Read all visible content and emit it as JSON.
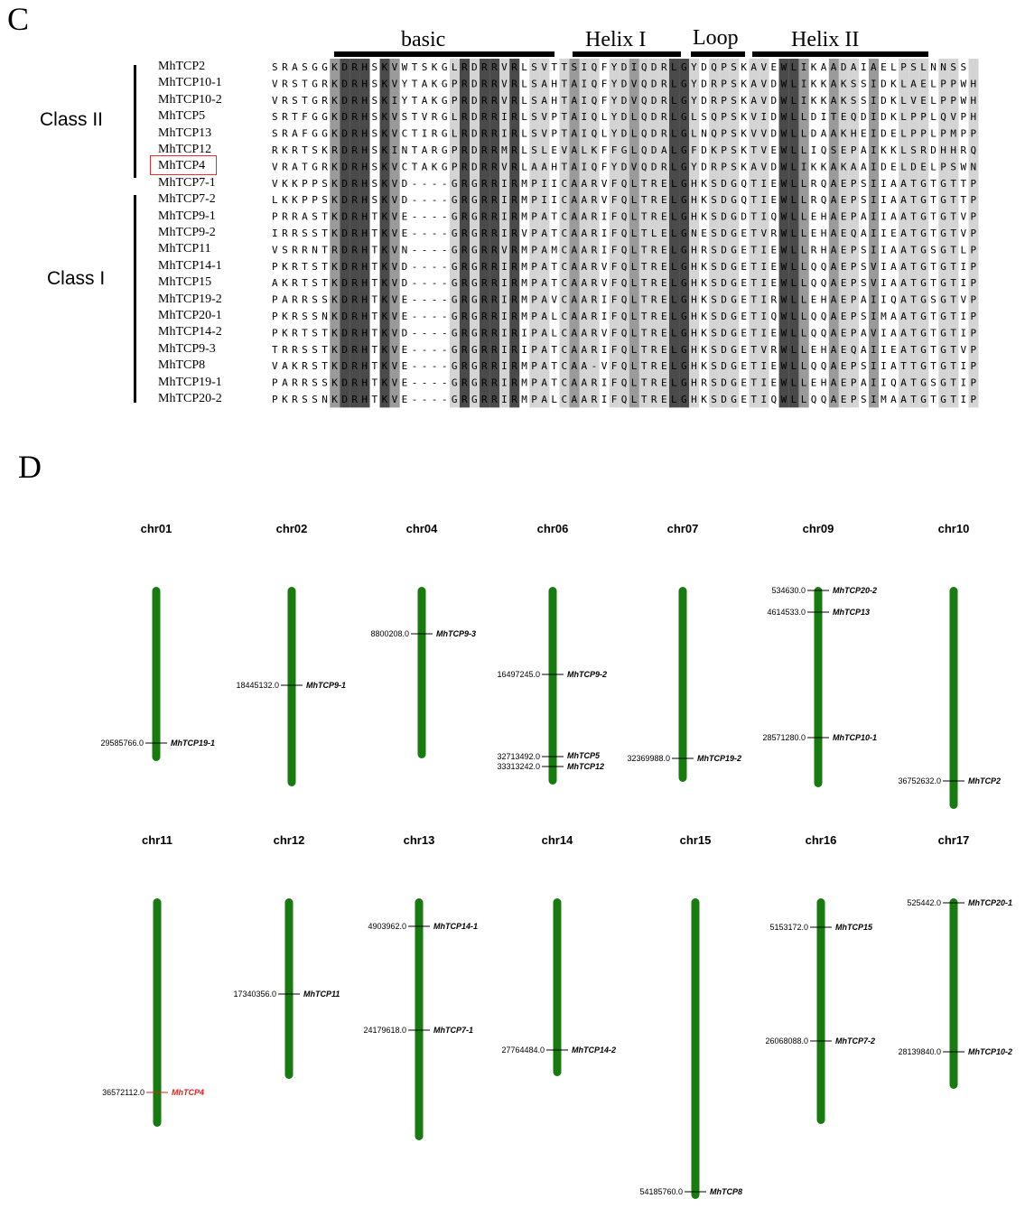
{
  "panels": {
    "c_label": "C",
    "d_label": "D"
  },
  "regions": [
    {
      "label": "basic"
    },
    {
      "label": "Helix I"
    },
    {
      "label": "Loop"
    },
    {
      "label": "Helix II"
    }
  ],
  "classes": {
    "class2": "Class II",
    "class1": "Class I"
  },
  "alignment": [
    {
      "name": "MhTCP2",
      "seq": "SRASGGKDRHSKVWTSKGLRDRRVRLSVTTSIQFYDIQDRLGYDQPSKAVEWLIKAADAIAELPSLNNSS"
    },
    {
      "name": "MhTCP10-1",
      "seq": "VRSTGRKDRHSKVYTAKGPRDRRVRLSAHTAIQFYDVQDRLGYDRPSKAVDWLIKKAKSSIDKLAELPPWH"
    },
    {
      "name": "MhTCP10-2",
      "seq": "VRSTGRKDRHSKIYTAKGPRDRRVRLSAHTAIQFYDVQDRLGYDRPSKAVDWLIKKAKSSIDKLVELPPWH"
    },
    {
      "name": "MhTCP5",
      "seq": "SRTFGGKDRHSKVSTVRGLRDRRIRLSVPTAIQLYDLQDRLGLSQPSKVIDWLLDITEQDIDKLPPLQVPH"
    },
    {
      "name": "MhTCP13",
      "seq": "SRAFGGKDRHSKVCTIRGLRDRRIRLSVPTAIQLYDLQDRLGLNQPSKVVDWLLDAAKHEIDELPPLPMPP"
    },
    {
      "name": "MhTCP12",
      "seq": "RKRTSKRDRHSKINTARGPRDRRMRLSLEVALKFFGLQDALGFDKPSKTVEWLLIQSEPAIKKLSRDHHRQ"
    },
    {
      "name": "MhTCP4",
      "seq": "VRATGRKDRHSKVCTAKGPRDRRVRLAAHTAIQFYDVQDRLGYDRPSKAVDWLIKKAKAAIDELDELPSWN"
    },
    {
      "name": "MhTCP7-1",
      "seq": "VKKPPSKDRHSKVD----GRGRRIRMPIICAARVFQLTRELGHKSDGQTIEWLLRQAEPSIIAATGTGTTP"
    },
    {
      "name": "MhTCP7-2",
      "seq": "LKKPPSKDRHSKVD----GRGRRIRMPIICAARVFQLTRELGHKSDGQTIEWLLRQAEPSIIAATGTGTTP"
    },
    {
      "name": "MhTCP9-1",
      "seq": "PRRASTKDRHTKVE----GRGRRIRMPATCAARIFQLTRELGHKSDGDTIQWLLEHAEPAIIAATGTGTVP"
    },
    {
      "name": "MhTCP9-2",
      "seq": "IRRSSTKDRHTKVE----GRGRRIRVPATCAARIFQLTLELGNESDGETVRWLLEHAEQAIIEATGTGTVP"
    },
    {
      "name": "MhTCP11",
      "seq": "VSRRNTRDRHTKVN----GRGRRVRMPAMCAARIFQLTRELGHRSDGETIEWLLRHAEPSIIAATGSGTLP"
    },
    {
      "name": "MhTCP14-1",
      "seq": "PKRTSTKDRHTKVD----GRGRRIRMPATCAARVFQLTRELGHKSDGETIEWLLQQAEPSVIAATGTGTIP"
    },
    {
      "name": "MhTCP15",
      "seq": "AKRTSTKDRHTKVD----GRGRRIRMPATCAARVFQLTRELGHKSDGETIEWLLQQAEPSVIAATGTGTIP"
    },
    {
      "name": "MhTCP19-2",
      "seq": "PARRSSKDRHTKVE----GRGRRIRMPAVCAARIFQLTRELGHKSDGETIRWLLEHAEPAIIQATGSGTVP"
    },
    {
      "name": "MhTCP20-1",
      "seq": "PKRSSNKDRHTKVE----GRGRRIRMPALCAARIFQLTRELGHKSDGETIQWLLQQAEPSIMAATGTGTIP"
    },
    {
      "name": "MhTCP14-2",
      "seq": "PKRTSTKDRHTKVD----GRGRRIRIPALCAARVFQLTRELGHKSDGETIEWLLQQAEPAVIAATGTGTIP"
    },
    {
      "name": "MhTCP9-3",
      "seq": "TRRSSTKDRHTKVE----GRGRRIRIPATCAARIFQLTRELGHKSDGETVRWLLEHAEQAIIEATGTGTVP"
    },
    {
      "name": "MhTCP8",
      "seq": "VAKRSTKDRHTKVE----GRGRRIRMPATCAA-VFQLTRELGHKSDGETIEWLLQQAEPSIIATTGTGTIP"
    },
    {
      "name": "MhTCP19-1",
      "seq": "PARRSSKDRHTKVE----GRGRRIRMPATCAARIFQLTRELGHRSDGETIEWLLEHAEPAIIQATGSGTIP"
    },
    {
      "name": "MhTCP20-2",
      "seq": "PKRSSNKDRHTKVE----GRGRRIRMPALCAARIFQLTRELGHKSDGETIQWLLQQAEPSIMAATGTGTIP"
    }
  ],
  "conservation": "----------3333333--3--3333------3----3----333----------33333--3---------",
  "chromosomes": [
    {
      "name": "chr01",
      "genes": [
        {
          "pos": "29585766.0",
          "gene": "MhTCP19-1"
        }
      ]
    },
    {
      "name": "chr02",
      "genes": [
        {
          "pos": "18445132.0",
          "gene": "MhTCP9-1"
        }
      ]
    },
    {
      "name": "chr04",
      "genes": [
        {
          "pos": "8800208.0",
          "gene": "MhTCP9-3"
        }
      ]
    },
    {
      "name": "chr06",
      "genes": [
        {
          "pos": "16497245.0",
          "gene": "MhTCP9-2"
        },
        {
          "pos": "32713492.0",
          "gene": "MhTCP5"
        },
        {
          "pos": "33313242.0",
          "gene": "MhTCP12"
        }
      ]
    },
    {
      "name": "chr07",
      "genes": [
        {
          "pos": "32369988.0",
          "gene": "MhTCP19-2"
        }
      ]
    },
    {
      "name": "chr09",
      "genes": [
        {
          "pos": "534630.0",
          "gene": "MhTCP20-2"
        },
        {
          "pos": "4614533.0",
          "gene": "MhTCP13"
        },
        {
          "pos": "28571280.0",
          "gene": "MhTCP10-1"
        }
      ]
    },
    {
      "name": "chr10",
      "genes": [
        {
          "pos": "36752632.0",
          "gene": "MhTCP2"
        }
      ]
    },
    {
      "name": "chr11",
      "genes": [
        {
          "pos": "36572112.0",
          "gene": "MhTCP4",
          "highlight": true
        }
      ]
    },
    {
      "name": "chr12",
      "genes": [
        {
          "pos": "17340356.0",
          "gene": "MhTCP11"
        }
      ]
    },
    {
      "name": "chr13",
      "genes": [
        {
          "pos": "4903962.0",
          "gene": "MhTCP14-1"
        },
        {
          "pos": "24179618.0",
          "gene": "MhTCP7-1"
        }
      ]
    },
    {
      "name": "chr14",
      "genes": [
        {
          "pos": "27764484.0",
          "gene": "MhTCP14-2"
        }
      ]
    },
    {
      "name": "chr15",
      "genes": [
        {
          "pos": "54185760.0",
          "gene": "MhTCP8"
        }
      ]
    },
    {
      "name": "chr16",
      "genes": [
        {
          "pos": "5153172.0",
          "gene": "MhTCP15"
        },
        {
          "pos": "26068088.0",
          "gene": "MhTCP7-2"
        }
      ]
    },
    {
      "name": "chr17",
      "genes": [
        {
          "pos": "525442.0",
          "gene": "MhTCP20-1"
        },
        {
          "pos": "28139840.0",
          "gene": "MhTCP10-2"
        }
      ]
    }
  ],
  "colors": {
    "chromosome": "#1a7a12",
    "highlight": "#e02020",
    "shade_dark": "#4a4a4a",
    "shade_mid": "#9a9a9a",
    "shade_light": "#d4d4d4"
  }
}
